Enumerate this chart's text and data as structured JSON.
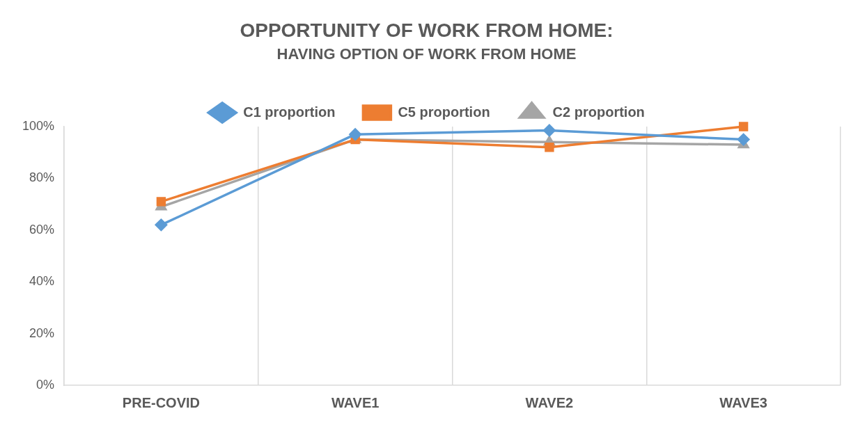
{
  "chart_data": {
    "type": "line",
    "title": "OPPORTUNITY OF WORK FROM HOME:",
    "subtitle": "HAVING OPTION OF WORK FROM HOME",
    "categories": [
      "PRE-COVID",
      "WAVE1",
      "WAVE2",
      "WAVE3"
    ],
    "series": [
      {
        "name": "C1 proportion",
        "color": "#5b9bd5",
        "marker": "diamond",
        "values": [
          62,
          97,
          98.5,
          95
        ]
      },
      {
        "name": "C5 proportion",
        "color": "#ed7d31",
        "marker": "square",
        "values": [
          71,
          95,
          92,
          100
        ]
      },
      {
        "name": "C2 proportion",
        "color": "#a5a5a5",
        "marker": "triangle",
        "values": [
          69,
          95,
          94,
          93
        ]
      }
    ],
    "ylim": [
      0,
      100
    ],
    "yticks": [
      {
        "value": 0,
        "label": "0%"
      },
      {
        "value": 20,
        "label": "20%"
      },
      {
        "value": 40,
        "label": "40%"
      },
      {
        "value": 60,
        "label": "60%"
      },
      {
        "value": 80,
        "label": "80%"
      },
      {
        "value": 100,
        "label": "100%"
      }
    ],
    "grid": "x",
    "legend": "top",
    "line_style": "solid"
  }
}
